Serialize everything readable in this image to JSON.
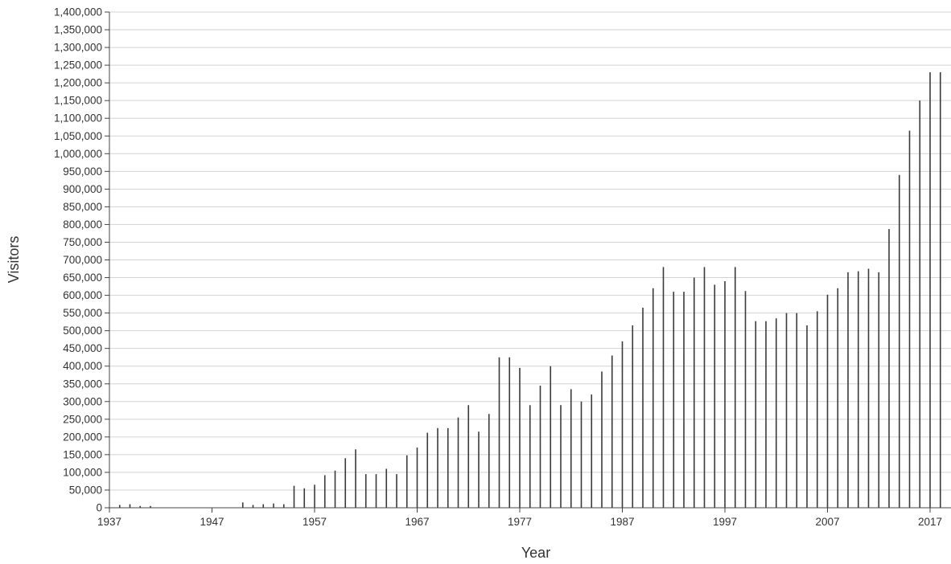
{
  "chart_data": {
    "type": "bar",
    "title": "",
    "xlabel": "Year",
    "ylabel": "Visitors",
    "xlim": [
      1937,
      1919
    ],
    "ylim": [
      0,
      1400000
    ],
    "y_ticks": [
      0,
      50000,
      100000,
      150000,
      200000,
      250000,
      300000,
      350000,
      400000,
      450000,
      500000,
      550000,
      600000,
      650000,
      700000,
      750000,
      800000,
      850000,
      900000,
      950000,
      1000000,
      1050000,
      1100000,
      1150000,
      1200000,
      1250000,
      1300000,
      1350000,
      1400000
    ],
    "y_tick_labels": [
      "0",
      "50,000",
      "100,000",
      "150,000",
      "200,000",
      "250,000",
      "300,000",
      "350,000",
      "400,000",
      "450,000",
      "500,000",
      "550,000",
      "600,000",
      "650,000",
      "700,000",
      "750,000",
      "800,000",
      "850,000",
      "900,000",
      "950,000",
      "1,000,000",
      "1,050,000",
      "1,100,000",
      "1,150,000",
      "1,200,000",
      "1,250,000",
      "1,300,000",
      "1,350,000",
      "1,400,000"
    ],
    "x_ticks": [
      1937,
      1947,
      1957,
      1967,
      1977,
      1987,
      1997,
      2007,
      2017
    ],
    "x_tick_labels": [
      "1937",
      "1947",
      "1957",
      "1967",
      "1977",
      "1987",
      "1997",
      "2007",
      "2017"
    ],
    "grid": true,
    "bar_color": "#3a3a3a",
    "x": [
      1938,
      1939,
      1940,
      1941,
      1950,
      1951,
      1952,
      1953,
      1954,
      1955,
      1956,
      1957,
      1958,
      1959,
      1960,
      1961,
      1962,
      1963,
      1964,
      1965,
      1966,
      1967,
      1968,
      1969,
      1970,
      1971,
      1972,
      1973,
      1974,
      1975,
      1976,
      1977,
      1978,
      1979,
      1980,
      1981,
      1982,
      1983,
      1984,
      1985,
      1986,
      1987,
      1988,
      1989,
      1990,
      1991,
      1992,
      1993,
      1994,
      1995,
      1996,
      1997,
      1998,
      1999,
      2000,
      2001,
      2002,
      2003,
      2004,
      2005,
      2006,
      2007,
      2008,
      2009,
      2010,
      2011,
      2012,
      2013,
      2014,
      2015,
      2016,
      2017,
      2018
    ],
    "values": [
      8000,
      10000,
      5000,
      5000,
      15000,
      8000,
      10000,
      12000,
      10000,
      62000,
      55000,
      65000,
      92000,
      105000,
      140000,
      165000,
      95000,
      95000,
      110000,
      95000,
      148000,
      170000,
      212000,
      225000,
      225000,
      255000,
      290000,
      215000,
      265000,
      425000,
      425000,
      395000,
      290000,
      345000,
      400000,
      290000,
      335000,
      300000,
      320000,
      385000,
      430000,
      470000,
      515000,
      565000,
      620000,
      680000,
      610000,
      610000,
      650000,
      680000,
      630000,
      640000,
      680000,
      612000,
      527000,
      527000,
      535000,
      550000,
      550000,
      515000,
      555000,
      602000,
      620000,
      665000,
      668000,
      675000,
      665000,
      787000,
      940000,
      1065000,
      1150000,
      1230000,
      1230000
    ]
  }
}
